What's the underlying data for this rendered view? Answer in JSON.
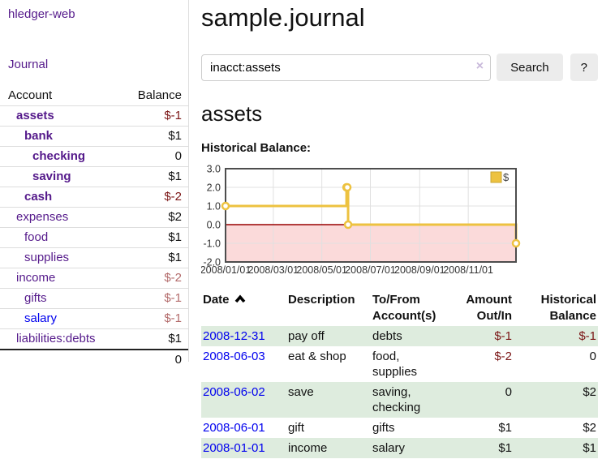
{
  "colors": {
    "link_purple": "#551a8b",
    "link_blue": "#0000ee",
    "negative_strong": "#7b1616",
    "negative_dim": "#b36b6b",
    "row_shade_green": "#deecde",
    "series_yellow": "#edc240",
    "negative_area_pink": "#fbdada",
    "zero_line_red": "#990000"
  },
  "sidebar": {
    "brand": "hledger-web",
    "nav_journal": "Journal",
    "accounts_header": {
      "account": "Account",
      "balance": "Balance"
    },
    "accounts": [
      {
        "name": "assets",
        "balance": "$-1",
        "depth": 1,
        "bold": true,
        "balance_class": "neg-strong"
      },
      {
        "name": "bank",
        "balance": "$1",
        "depth": 2,
        "bold": true,
        "balance_class": ""
      },
      {
        "name": "checking",
        "balance": "0",
        "depth": 3,
        "bold": true,
        "balance_class": ""
      },
      {
        "name": "saving",
        "balance": "$1",
        "depth": 3,
        "bold": true,
        "balance_class": ""
      },
      {
        "name": "cash",
        "balance": "$-2",
        "depth": 2,
        "bold": true,
        "balance_class": "neg-strong"
      },
      {
        "name": "expenses",
        "balance": "$2",
        "depth": 1,
        "bold": false,
        "balance_class": ""
      },
      {
        "name": "food",
        "balance": "$1",
        "depth": 2,
        "bold": false,
        "balance_class": ""
      },
      {
        "name": "supplies",
        "balance": "$1",
        "depth": 2,
        "bold": false,
        "balance_class": ""
      },
      {
        "name": "income",
        "balance": "$-2",
        "depth": 1,
        "bold": false,
        "balance_class": "neg-dim"
      },
      {
        "name": "gifts",
        "balance": "$-1",
        "depth": 2,
        "bold": false,
        "balance_class": "neg-dim"
      },
      {
        "name": "salary",
        "balance": "$-1",
        "depth": 2,
        "bold": false,
        "balance_class": "neg-dim",
        "link_blue": true
      },
      {
        "name": "liabilities:debts",
        "balance": "$1",
        "depth": 1,
        "bold": false,
        "balance_class": ""
      }
    ],
    "total": "0"
  },
  "main": {
    "title": "sample.journal",
    "search": {
      "value": "inacct:assets",
      "clear_icon": "×",
      "search_button": "Search",
      "help_button": "?"
    },
    "account_heading": "assets",
    "chart_label": "Historical Balance:"
  },
  "chart_data": {
    "type": "line",
    "step": true,
    "title": "Historical Balance:",
    "series": [
      {
        "name": "$",
        "color": "#edc240",
        "points": [
          {
            "x": "2008-01-01",
            "y": 1
          },
          {
            "x": "2008-06-01",
            "y": 2
          },
          {
            "x": "2008-06-02",
            "y": 2
          },
          {
            "x": "2008-06-03",
            "y": 0
          },
          {
            "x": "2008-12-31",
            "y": -1
          }
        ]
      }
    ],
    "ylim": [
      -2,
      3
    ],
    "yticks": [
      "3.0",
      "2.0",
      "1.0",
      "0.0",
      "-1.0",
      "-2.0"
    ],
    "xticks": [
      "2008/01/01",
      "2008/03/01",
      "2008/05/01",
      "2008/07/01",
      "2008/09/01",
      "2008/11/01"
    ],
    "xrange": [
      "2008-01-01",
      "2008-12-31"
    ],
    "legend": {
      "label": "$",
      "position": "top-right"
    },
    "grid": true
  },
  "register": {
    "headers": {
      "date": "Date",
      "sort_indicator": "up",
      "description": "Description",
      "accounts": "To/From Account(s)",
      "amount": "Amount Out/In",
      "balance": "Historical Balance"
    },
    "rows": [
      {
        "date": "2008-12-31",
        "description": "pay off",
        "accounts": "debts",
        "amount": "$-1",
        "amount_negative": true,
        "balance": "$-1",
        "balance_negative": true
      },
      {
        "date": "2008-06-03",
        "description": "eat & shop",
        "accounts": "food, supplies",
        "amount": "$-2",
        "amount_negative": true,
        "balance": "0",
        "balance_negative": false
      },
      {
        "date": "2008-06-02",
        "description": "save",
        "accounts": "saving, checking",
        "amount": "0",
        "amount_negative": false,
        "balance": "$2",
        "balance_negative": false
      },
      {
        "date": "2008-06-01",
        "description": "gift",
        "accounts": "gifts",
        "amount": "$1",
        "amount_negative": false,
        "balance": "$2",
        "balance_negative": false
      },
      {
        "date": "2008-01-01",
        "description": "income",
        "accounts": "salary",
        "amount": "$1",
        "amount_negative": false,
        "balance": "$1",
        "balance_negative": false
      }
    ]
  }
}
